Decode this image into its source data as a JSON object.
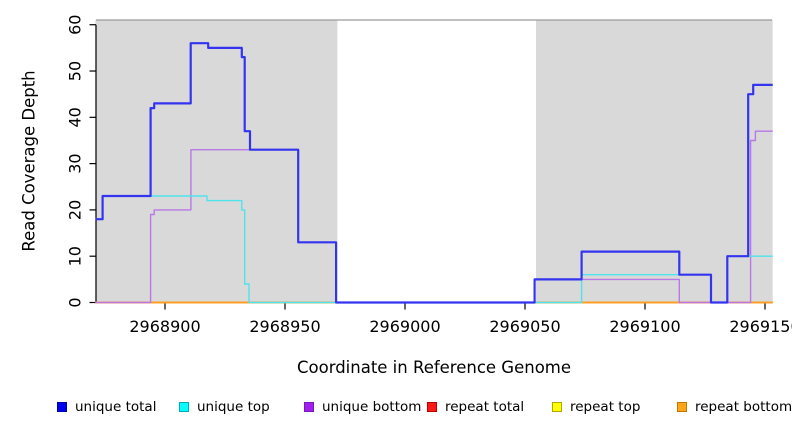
{
  "figure": {
    "kind": "R base-graphics coverage plot",
    "background": "#ffffff"
  },
  "chart_data": {
    "type": "line",
    "step": true,
    "title": "",
    "xlabel": "Coordinate in Reference Genome",
    "ylabel": "Read Coverage Depth",
    "xlim": [
      2968871,
      2969153
    ],
    "ylim": [
      0,
      60
    ],
    "x_ticks": [
      2968900,
      2968950,
      2969000,
      2969050,
      2969100,
      2969150
    ],
    "y_ticks": [
      0,
      10,
      20,
      30,
      40,
      50,
      60
    ],
    "grid": false,
    "band_color": "#d9d9d9",
    "band_top_line_color": "#9a9a9a",
    "axis_color": "#000000",
    "shaded_bands": [
      [
        2968871,
        2968971.8
      ],
      [
        2969054.6,
        2969153.2
      ]
    ],
    "series": [
      {
        "name": "repeat total",
        "color": "#e02222",
        "width": 1.4,
        "points": [
          [
            2968871,
            0
          ],
          [
            2969153.2,
            0
          ]
        ]
      },
      {
        "name": "repeat top",
        "color": "#ffff00",
        "width": 1.4,
        "points": [
          [
            2968871,
            0
          ],
          [
            2969153.2,
            0
          ]
        ]
      },
      {
        "name": "repeat bottom",
        "color": "#ff9d26",
        "width": 2.0,
        "points": [
          [
            2968871,
            0
          ],
          [
            2969153.2,
            0
          ]
        ]
      },
      {
        "name": "unique bottom",
        "color": "#b878e8",
        "width": 1.4,
        "points": [
          [
            2968871,
            0
          ],
          [
            2968894,
            19
          ],
          [
            2968895.5,
            20
          ],
          [
            2968910.8,
            33
          ],
          [
            2968955.5,
            13
          ],
          [
            2968971.3,
            0
          ],
          [
            2969054,
            5
          ],
          [
            2969114.3,
            0
          ],
          [
            2969144,
            35
          ],
          [
            2969146,
            37
          ],
          [
            2969153.2,
            37
          ]
        ]
      },
      {
        "name": "unique top",
        "color": "#4fe3ec",
        "width": 1.4,
        "points": [
          [
            2968871,
            18
          ],
          [
            2968874,
            23
          ],
          [
            2968917.5,
            22
          ],
          [
            2968932,
            20
          ],
          [
            2968933.2,
            4
          ],
          [
            2968935,
            0
          ],
          [
            2969073.6,
            6
          ],
          [
            2969127.5,
            0
          ],
          [
            2969134.3,
            10
          ],
          [
            2969153.2,
            10
          ]
        ]
      },
      {
        "name": "unique total",
        "color": "#3434f0",
        "width": 2.2,
        "points": [
          [
            2968871,
            18
          ],
          [
            2968874,
            23
          ],
          [
            2968894,
            42
          ],
          [
            2968895.5,
            43
          ],
          [
            2968910.7,
            56
          ],
          [
            2968918,
            55
          ],
          [
            2968932,
            53
          ],
          [
            2968933.2,
            37
          ],
          [
            2968935.4,
            33
          ],
          [
            2968955.5,
            13
          ],
          [
            2968971.3,
            0
          ],
          [
            2969054,
            5
          ],
          [
            2969073.6,
            11
          ],
          [
            2969114.3,
            6
          ],
          [
            2969127.5,
            0
          ],
          [
            2969134.3,
            10
          ],
          [
            2969143,
            45
          ],
          [
            2969145.1,
            47
          ],
          [
            2969153.2,
            47
          ]
        ]
      }
    ],
    "legend_position": "bottom"
  },
  "legend": {
    "items": [
      {
        "label": "unique total",
        "fill": "#0000f0",
        "border": "#0000a8"
      },
      {
        "label": "unique top",
        "fill": "#00ffff",
        "border": "#00aab8"
      },
      {
        "label": "unique bottom",
        "fill": "#a020f0",
        "border": "#7818b8"
      },
      {
        "label": "repeat total",
        "fill": "#ff1616",
        "border": "#b00000"
      },
      {
        "label": "repeat top",
        "fill": "#ffff00",
        "border": "#b0a800"
      },
      {
        "label": "repeat bottom",
        "fill": "#ffa516",
        "border": "#c07800"
      }
    ]
  }
}
